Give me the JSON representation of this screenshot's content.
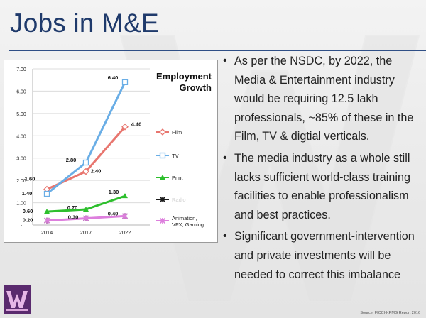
{
  "slide": {
    "title": "Jobs in M&E",
    "source": "Source: FICCI-KPMG Report 2016",
    "logo_icon": "w-logo-icon",
    "accent_color": "#1f3a6b"
  },
  "bullets": [
    "As per the NSDC, by 2022, the Media & Entertainment industry would be requiring 12.5 lakh professionals, ~85% of these in the Film, TV & digtial verticals.",
    "The media industry as a whole still lacks sufficient world-class training facilities to enable professionalism and best practices.",
    "Significant government-intervention and private investments will be needed to correct this imbalance"
  ],
  "chart_data": {
    "type": "line",
    "title": "Employment Growth",
    "x": [
      "2014",
      "2017",
      "2022"
    ],
    "ylim": [
      0,
      7
    ],
    "yticks": [
      "-",
      "1.00",
      "2.00",
      "3.00",
      "4.00",
      "5.00",
      "6.00",
      "7.00"
    ],
    "grid": true,
    "legend_position": "right",
    "series": [
      {
        "name": "Film",
        "color": "#e8766f",
        "marker": "diamond",
        "values": [
          1.6,
          2.4,
          4.4
        ],
        "labels": [
          "1.60",
          "2.40",
          "4.40"
        ]
      },
      {
        "name": "TV",
        "color": "#6aaee6",
        "marker": "square",
        "values": [
          1.4,
          2.8,
          6.4
        ],
        "labels": [
          "1.40",
          "2.80",
          "6.40"
        ]
      },
      {
        "name": "Print",
        "color": "#2dbf2d",
        "marker": "triangle",
        "values": [
          0.6,
          0.7,
          1.3
        ],
        "labels": [
          "0.60",
          "0.70",
          "1.30"
        ]
      },
      {
        "name": "Radio",
        "color": "#1a1a1a",
        "marker": "cross",
        "values": [
          0.2,
          0.3,
          0.4
        ],
        "labels": [
          "",
          "",
          ""
        ]
      },
      {
        "name": "Animation, VFX, Gaming",
        "color": "#dd7fdd",
        "marker": "cross",
        "values": [
          0.2,
          0.3,
          0.4
        ],
        "labels": [
          "0.20",
          "0.30",
          "0.40"
        ]
      }
    ]
  }
}
